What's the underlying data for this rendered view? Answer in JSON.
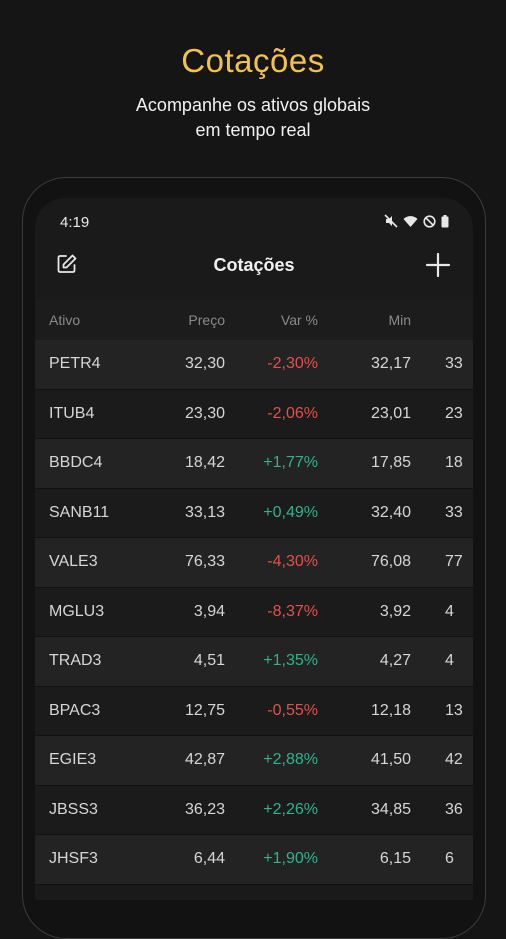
{
  "promo": {
    "title": "Cotações",
    "subtitle_line1": "Acompanhe os ativos globais",
    "subtitle_line2": "em tempo real"
  },
  "status": {
    "time": "4:19"
  },
  "appbar": {
    "title": "Cotações"
  },
  "table": {
    "headers": {
      "ativo": "Ativo",
      "preco": "Preço",
      "var": "Var %",
      "min": "Min"
    },
    "rows": [
      {
        "ativo": "PETR4",
        "preco": "32,30",
        "var": "-2,30%",
        "min": "32,17",
        "extra": "33"
      },
      {
        "ativo": "ITUB4",
        "preco": "23,30",
        "var": "-2,06%",
        "min": "23,01",
        "extra": "23"
      },
      {
        "ativo": "BBDC4",
        "preco": "18,42",
        "var": "+1,77%",
        "min": "17,85",
        "extra": "18"
      },
      {
        "ativo": "SANB11",
        "preco": "33,13",
        "var": "+0,49%",
        "min": "32,40",
        "extra": "33"
      },
      {
        "ativo": "VALE3",
        "preco": "76,33",
        "var": "-4,30%",
        "min": "76,08",
        "extra": "77"
      },
      {
        "ativo": "MGLU3",
        "preco": "3,94",
        "var": "-8,37%",
        "min": "3,92",
        "extra": "4"
      },
      {
        "ativo": "TRAD3",
        "preco": "4,51",
        "var": "+1,35%",
        "min": "4,27",
        "extra": "4"
      },
      {
        "ativo": "BPAC3",
        "preco": "12,75",
        "var": "-0,55%",
        "min": "12,18",
        "extra": "13"
      },
      {
        "ativo": "EGIE3",
        "preco": "42,87",
        "var": "+2,88%",
        "min": "41,50",
        "extra": "42"
      },
      {
        "ativo": "JBSS3",
        "preco": "36,23",
        "var": "+2,26%",
        "min": "34,85",
        "extra": "36"
      },
      {
        "ativo": "JHSF3",
        "preco": "6,44",
        "var": "+1,90%",
        "min": "6,15",
        "extra": "6"
      }
    ]
  },
  "colors": {
    "accent": "#f2c14e",
    "positive": "#2fb38c",
    "negative": "#e0524e"
  },
  "icons": {
    "edit": "edit-icon",
    "add": "plus-icon",
    "mute": "mute-icon",
    "wifi": "wifi-icon",
    "dnd": "dnd-icon",
    "battery": "battery-icon"
  }
}
